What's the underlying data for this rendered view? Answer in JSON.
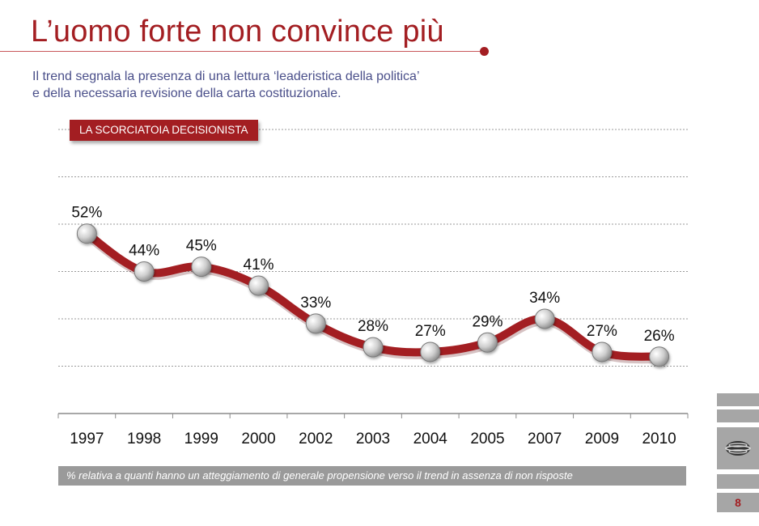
{
  "header": {
    "title": "L’uomo forte non convince più",
    "subtitle_line1": "Il trend segnala la presenza di una lettura ‘leaderistica della politica’",
    "subtitle_line2": "e della necessaria revisione della carta costituzionale."
  },
  "section_tag": "LA SCORCIATOIA DECISIONISTA",
  "footnote": "% relativa a quanti hanno un atteggiamento di generale propensione verso  il trend in assenza di non risposte",
  "page_number": "8",
  "colors": {
    "accent": "#a31e22",
    "line": "#a31e22",
    "marker": "#c9c9c9",
    "gray": "#9a9a9a"
  },
  "chart_data": {
    "type": "line",
    "title": "LA SCORCIATOIA DECISIONISTA",
    "categories": [
      "1997",
      "1998",
      "1999",
      "2000",
      "2002",
      "2003",
      "2004",
      "2005",
      "2007",
      "2009",
      "2010"
    ],
    "values": [
      52,
      44,
      45,
      41,
      33,
      28,
      27,
      29,
      34,
      27,
      26
    ],
    "labels": [
      "52%",
      "44%",
      "45%",
      "41%",
      "33%",
      "28%",
      "27%",
      "29%",
      "34%",
      "27%",
      "26%"
    ],
    "ylim": [
      14,
      74
    ],
    "grid": true,
    "legend": "none"
  }
}
